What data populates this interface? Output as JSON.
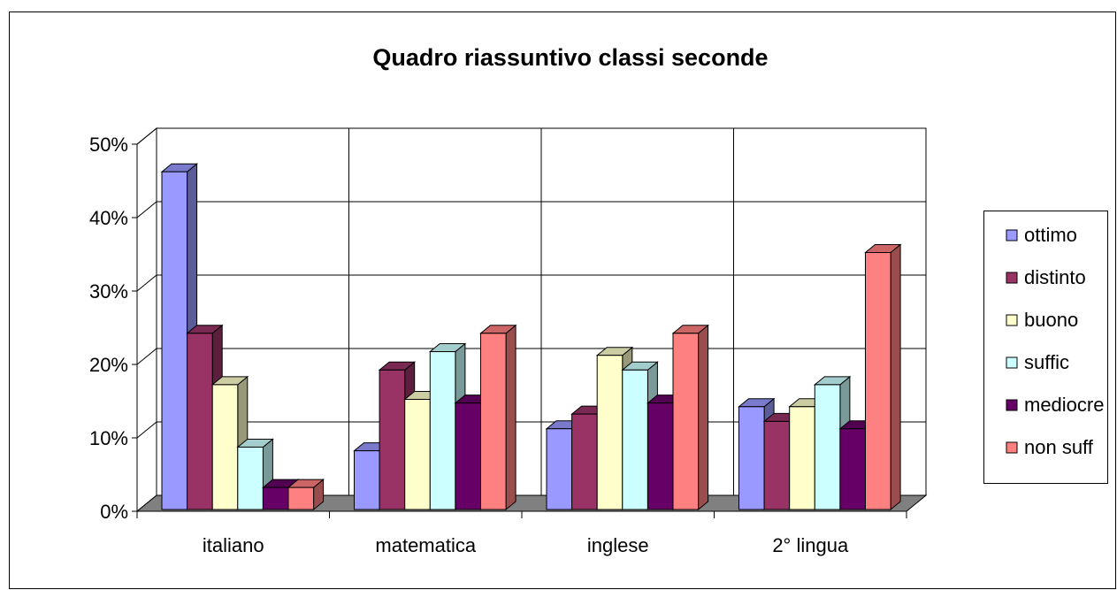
{
  "chart_data": {
    "type": "bar3d",
    "title": "Quadro riassuntivo classi seconde",
    "categories": [
      "italiano",
      "matematica",
      "inglese",
      "2° lingua"
    ],
    "series": [
      {
        "name": "ottimo",
        "color": "#9999ff",
        "values": [
          46,
          8,
          11,
          14
        ]
      },
      {
        "name": "distinto",
        "color": "#993366",
        "values": [
          24,
          19,
          13,
          12
        ]
      },
      {
        "name": "buono",
        "color": "#ffffcc",
        "values": [
          17,
          15,
          21,
          14
        ]
      },
      {
        "name": "suffic",
        "color": "#ccffff",
        "values": [
          8.5,
          21.5,
          19,
          17
        ]
      },
      {
        "name": "mediocre",
        "color": "#660066",
        "values": [
          3,
          14.5,
          14.5,
          11
        ]
      },
      {
        "name": "non suff",
        "color": "#ff8080",
        "values": [
          3,
          24,
          24,
          35
        ]
      }
    ],
    "ylim": [
      0,
      50
    ],
    "yticks": [
      {
        "value": 0,
        "label": "0%"
      },
      {
        "value": 10,
        "label": "10%"
      },
      {
        "value": 20,
        "label": "20%"
      },
      {
        "value": 30,
        "label": "30%"
      },
      {
        "value": 40,
        "label": "40%"
      },
      {
        "value": 50,
        "label": "50%"
      }
    ],
    "grid": true,
    "legend": "right"
  }
}
